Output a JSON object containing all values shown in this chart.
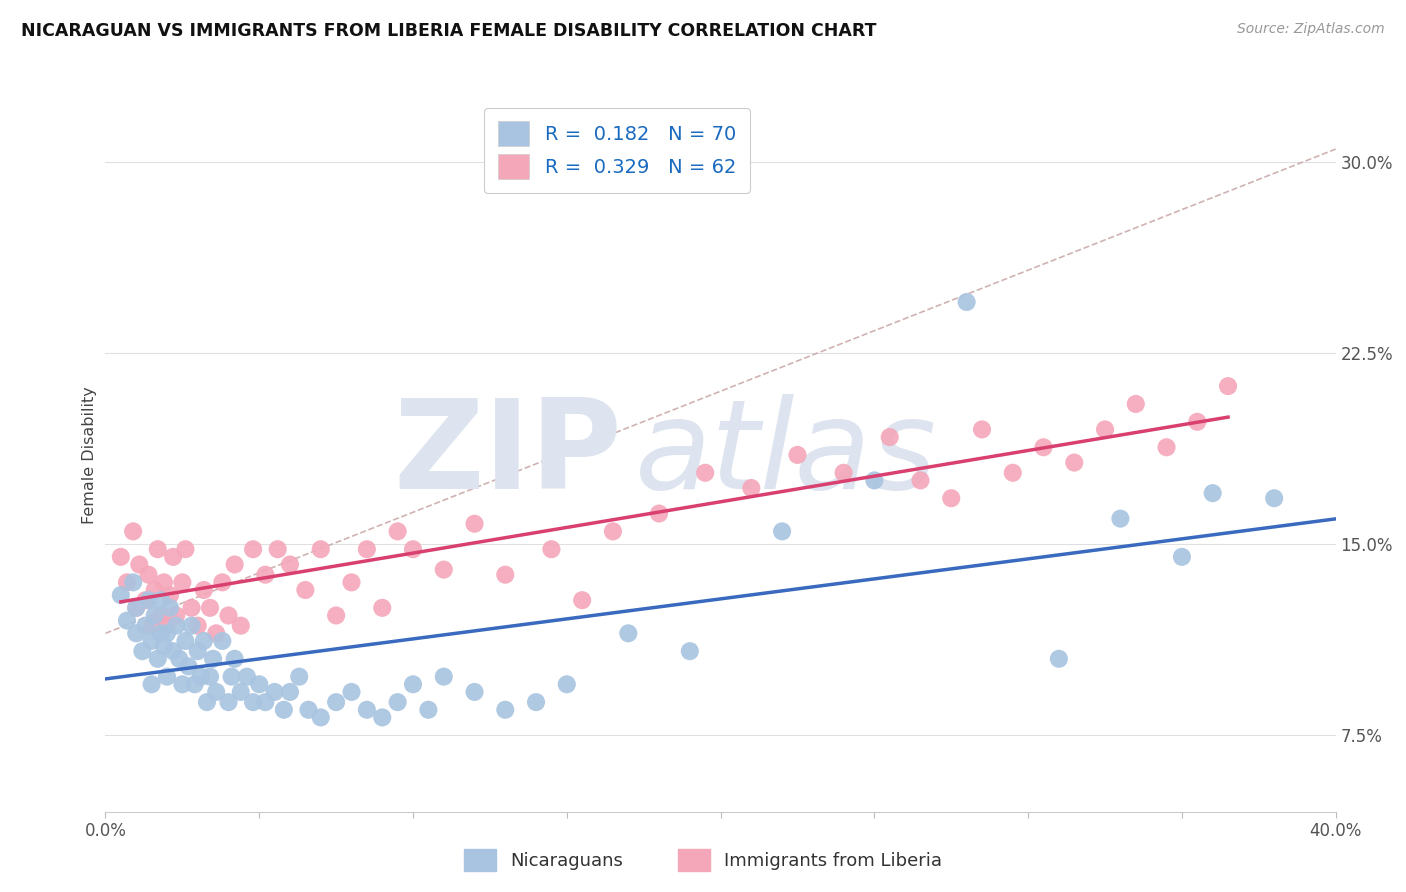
{
  "title": "NICARAGUAN VS IMMIGRANTS FROM LIBERIA FEMALE DISABILITY CORRELATION CHART",
  "source": "Source: ZipAtlas.com",
  "ylabel": "Female Disability",
  "ytick_labels": [
    "7.5%",
    "15.0%",
    "22.5%",
    "30.0%"
  ],
  "ytick_values": [
    0.075,
    0.15,
    0.225,
    0.3
  ],
  "xlim": [
    0.0,
    0.4
  ],
  "ylim": [
    0.045,
    0.325
  ],
  "nicaraguan_color": "#a8c4e0",
  "liberia_color": "#f4a7b9",
  "nicaraguan_line_color": "#3a6abf",
  "liberia_line_color": "#d94070",
  "trend_dash_color": "#ccaaaa",
  "R_nicaraguan": 0.182,
  "N_nicaraguan": 70,
  "R_liberia": 0.329,
  "N_liberia": 62,
  "legend_label_nicaraguan": "Nicaraguans",
  "legend_label_liberia": "Immigrants from Liberia",
  "legend_R_color": "#1a6abf",
  "background_color": "#ffffff",
  "grid_color": "#e0e0e0",
  "title_fontsize": 13,
  "tick_fontsize": 12,
  "legend_fontsize": 13,
  "nic_x": [
    0.005,
    0.007,
    0.009,
    0.01,
    0.01,
    0.012,
    0.013,
    0.014,
    0.015,
    0.015,
    0.016,
    0.017,
    0.018,
    0.018,
    0.019,
    0.02,
    0.02,
    0.021,
    0.022,
    0.023,
    0.024,
    0.025,
    0.026,
    0.027,
    0.028,
    0.029,
    0.03,
    0.031,
    0.032,
    0.033,
    0.034,
    0.035,
    0.036,
    0.038,
    0.04,
    0.041,
    0.042,
    0.044,
    0.046,
    0.048,
    0.05,
    0.052,
    0.055,
    0.058,
    0.06,
    0.063,
    0.066,
    0.07,
    0.075,
    0.08,
    0.085,
    0.09,
    0.095,
    0.1,
    0.105,
    0.11,
    0.12,
    0.13,
    0.14,
    0.15,
    0.17,
    0.19,
    0.22,
    0.25,
    0.28,
    0.31,
    0.33,
    0.35,
    0.36,
    0.38
  ],
  "nic_y": [
    0.13,
    0.12,
    0.135,
    0.115,
    0.125,
    0.108,
    0.118,
    0.128,
    0.095,
    0.112,
    0.122,
    0.105,
    0.115,
    0.128,
    0.11,
    0.098,
    0.115,
    0.125,
    0.108,
    0.118,
    0.105,
    0.095,
    0.112,
    0.102,
    0.118,
    0.095,
    0.108,
    0.098,
    0.112,
    0.088,
    0.098,
    0.105,
    0.092,
    0.112,
    0.088,
    0.098,
    0.105,
    0.092,
    0.098,
    0.088,
    0.095,
    0.088,
    0.092,
    0.085,
    0.092,
    0.098,
    0.085,
    0.082,
    0.088,
    0.092,
    0.085,
    0.082,
    0.088,
    0.095,
    0.085,
    0.098,
    0.092,
    0.085,
    0.088,
    0.095,
    0.115,
    0.108,
    0.155,
    0.175,
    0.245,
    0.105,
    0.16,
    0.145,
    0.17,
    0.168
  ],
  "lib_x": [
    0.005,
    0.007,
    0.009,
    0.01,
    0.011,
    0.013,
    0.014,
    0.015,
    0.016,
    0.017,
    0.018,
    0.019,
    0.02,
    0.021,
    0.022,
    0.023,
    0.025,
    0.026,
    0.028,
    0.03,
    0.032,
    0.034,
    0.036,
    0.038,
    0.04,
    0.042,
    0.044,
    0.048,
    0.052,
    0.056,
    0.06,
    0.065,
    0.07,
    0.075,
    0.08,
    0.085,
    0.09,
    0.095,
    0.1,
    0.11,
    0.12,
    0.13,
    0.145,
    0.155,
    0.165,
    0.18,
    0.195,
    0.21,
    0.225,
    0.24,
    0.255,
    0.265,
    0.275,
    0.285,
    0.295,
    0.305,
    0.315,
    0.325,
    0.335,
    0.345,
    0.355,
    0.365
  ],
  "lib_y": [
    0.145,
    0.135,
    0.155,
    0.125,
    0.142,
    0.128,
    0.138,
    0.118,
    0.132,
    0.148,
    0.122,
    0.135,
    0.118,
    0.13,
    0.145,
    0.122,
    0.135,
    0.148,
    0.125,
    0.118,
    0.132,
    0.125,
    0.115,
    0.135,
    0.122,
    0.142,
    0.118,
    0.148,
    0.138,
    0.148,
    0.142,
    0.132,
    0.148,
    0.122,
    0.135,
    0.148,
    0.125,
    0.155,
    0.148,
    0.14,
    0.158,
    0.138,
    0.148,
    0.128,
    0.155,
    0.162,
    0.178,
    0.172,
    0.185,
    0.178,
    0.192,
    0.175,
    0.168,
    0.195,
    0.178,
    0.188,
    0.182,
    0.195,
    0.205,
    0.188,
    0.198,
    0.212
  ],
  "watermark_zip_color": "#e0e4ec",
  "watermark_atlas_color": "#dde4f0"
}
